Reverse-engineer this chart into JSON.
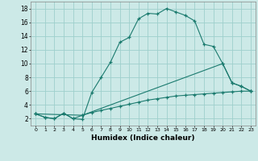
{
  "xlabel": "Humidex (Indice chaleur)",
  "bg_color": "#cce9e7",
  "grid_color": "#9ecfcc",
  "line_color": "#1a7a6e",
  "xlim": [
    -0.5,
    23.5
  ],
  "ylim": [
    1,
    19
  ],
  "xticks": [
    0,
    1,
    2,
    3,
    4,
    5,
    6,
    7,
    8,
    9,
    10,
    11,
    12,
    13,
    14,
    15,
    16,
    17,
    18,
    19,
    20,
    21,
    22,
    23
  ],
  "yticks": [
    2,
    4,
    6,
    8,
    10,
    12,
    14,
    16,
    18
  ],
  "line1_x": [
    0,
    1,
    2,
    3,
    4,
    5,
    6,
    7,
    8,
    9,
    10,
    11,
    12,
    13,
    14,
    15,
    16,
    17,
    18,
    19,
    20,
    21,
    22,
    23
  ],
  "line1_y": [
    2.7,
    2.2,
    2.0,
    2.8,
    2.0,
    1.9,
    5.8,
    8.0,
    10.2,
    13.1,
    13.8,
    16.5,
    17.3,
    17.2,
    18.0,
    17.5,
    17.0,
    16.2,
    12.8,
    12.5,
    10.0,
    7.2,
    6.7,
    6.0
  ],
  "line2_x": [
    0,
    5,
    20,
    21,
    22,
    23
  ],
  "line2_y": [
    2.7,
    2.5,
    10.0,
    7.2,
    6.7,
    6.0
  ],
  "line3_x": [
    0,
    1,
    2,
    3,
    4,
    5,
    6,
    7,
    8,
    9,
    10,
    11,
    12,
    13,
    14,
    15,
    16,
    17,
    18,
    19,
    20,
    21,
    22,
    23
  ],
  "line3_y": [
    2.7,
    2.2,
    2.0,
    2.8,
    2.0,
    2.5,
    2.9,
    3.2,
    3.5,
    3.8,
    4.1,
    4.4,
    4.7,
    4.9,
    5.1,
    5.3,
    5.4,
    5.5,
    5.6,
    5.7,
    5.8,
    5.9,
    6.0,
    6.0
  ]
}
